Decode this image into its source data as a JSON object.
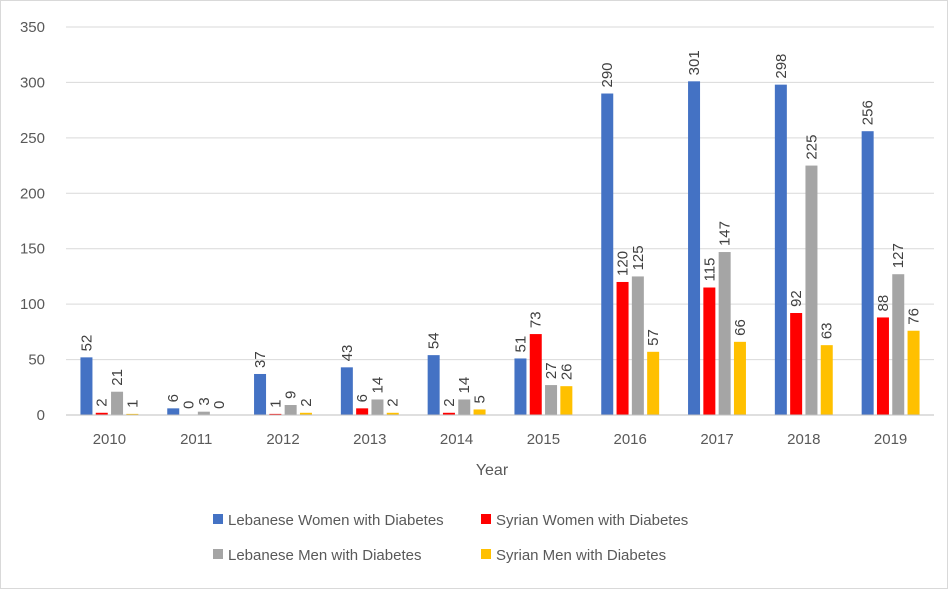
{
  "chart_data": {
    "type": "bar",
    "title": "",
    "xlabel": "Year",
    "ylabel": "",
    "ylim": [
      0,
      350
    ],
    "yticks": [
      0,
      50,
      100,
      150,
      200,
      250,
      300,
      350
    ],
    "grid": true,
    "legend_position": "bottom",
    "categories": [
      "2010",
      "2011",
      "2012",
      "2013",
      "2014",
      "2015",
      "2016",
      "2017",
      "2018",
      "2019"
    ],
    "series": [
      {
        "name": "Lebanese Women with Diabetes",
        "color": "#4472C4",
        "values": [
          52,
          6,
          37,
          43,
          54,
          51,
          290,
          301,
          298,
          256
        ]
      },
      {
        "name": "Syrian Women with Diabetes",
        "color": "#FF0000",
        "values": [
          2,
          0,
          1,
          6,
          2,
          73,
          120,
          115,
          92,
          88
        ]
      },
      {
        "name": "Lebanese Men with Diabetes",
        "color": "#A5A5A5",
        "values": [
          21,
          3,
          9,
          14,
          14,
          27,
          125,
          147,
          225,
          127
        ]
      },
      {
        "name": "Syrian Men with Diabetes",
        "color": "#FFC000",
        "values": [
          1,
          0,
          2,
          2,
          5,
          26,
          57,
          66,
          63,
          76
        ]
      }
    ]
  }
}
